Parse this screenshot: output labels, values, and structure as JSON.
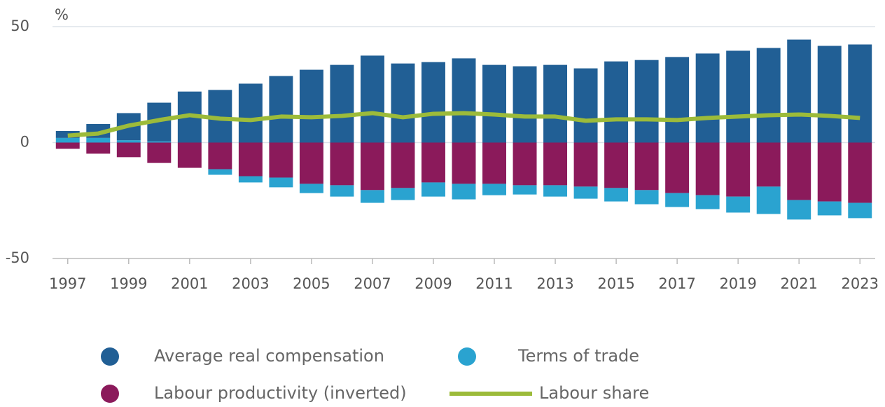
{
  "chart_data": {
    "type": "bar",
    "y_label": "%",
    "x": [
      1997,
      1998,
      1999,
      2000,
      2001,
      2002,
      2003,
      2004,
      2005,
      2006,
      2007,
      2008,
      2009,
      2010,
      2011,
      2012,
      2013,
      2014,
      2015,
      2016,
      2017,
      2018,
      2019,
      2020,
      2021,
      2022,
      2023
    ],
    "xlim": [
      1996.5,
      2023.5
    ],
    "xticks": [
      1997,
      1999,
      2001,
      2003,
      2005,
      2007,
      2009,
      2011,
      2013,
      2015,
      2017,
      2019,
      2021,
      2023
    ],
    "ylim": [
      -50,
      50
    ],
    "yticks": [
      -50,
      0,
      50
    ],
    "grid": true,
    "series": [
      {
        "name": "Average real compensation",
        "color": "#215f95",
        "values": [
          3,
          6,
          11.7,
          16.7,
          22,
          22.7,
          25.4,
          28.7,
          31.4,
          33.5,
          37.5,
          34.1,
          34.7,
          36.3,
          33.5,
          32.9,
          33.5,
          32,
          35,
          35.6,
          36.9,
          38.4,
          39.6,
          40.8,
          44.4,
          41.7,
          42.3
        ]
      },
      {
        "name": "Labour productivity (inverted)",
        "color": "#8b1a5b",
        "values": [
          -2.7,
          -4.8,
          -6.3,
          -8.8,
          -10.9,
          -11.5,
          -14.5,
          -15.1,
          -17.8,
          -18.4,
          -20.5,
          -19.6,
          -17.2,
          -17.8,
          -17.8,
          -18.4,
          -18.4,
          -19,
          -19.6,
          -20.5,
          -21.8,
          -22.7,
          -23.3,
          -19,
          -24.8,
          -25.4,
          -26
        ]
      },
      {
        "name": "Terms of trade",
        "color": "#2aa3d0",
        "values": [
          2,
          2,
          1,
          0.5,
          0,
          -2.4,
          -2.7,
          -4.2,
          -4,
          -4.9,
          -5.5,
          -5.2,
          -6.1,
          -6.7,
          -4.9,
          -4,
          -4.9,
          -5.2,
          -5.8,
          -6.1,
          -6,
          -6,
          -6.9,
          -11.8,
          -8.4,
          -6,
          -6.6
        ]
      },
      {
        "name": "Labour share",
        "type": "line",
        "color": "#9cbb3a",
        "values": [
          3,
          3.9,
          7.3,
          9.7,
          11.8,
          10.3,
          9.7,
          11.2,
          10.9,
          11.5,
          12.7,
          10.9,
          12.4,
          12.7,
          12.1,
          11.2,
          11.2,
          9.4,
          10,
          10,
          9.7,
          10.6,
          11.2,
          11.8,
          12.1,
          11.5,
          10.6
        ]
      }
    ]
  }
}
